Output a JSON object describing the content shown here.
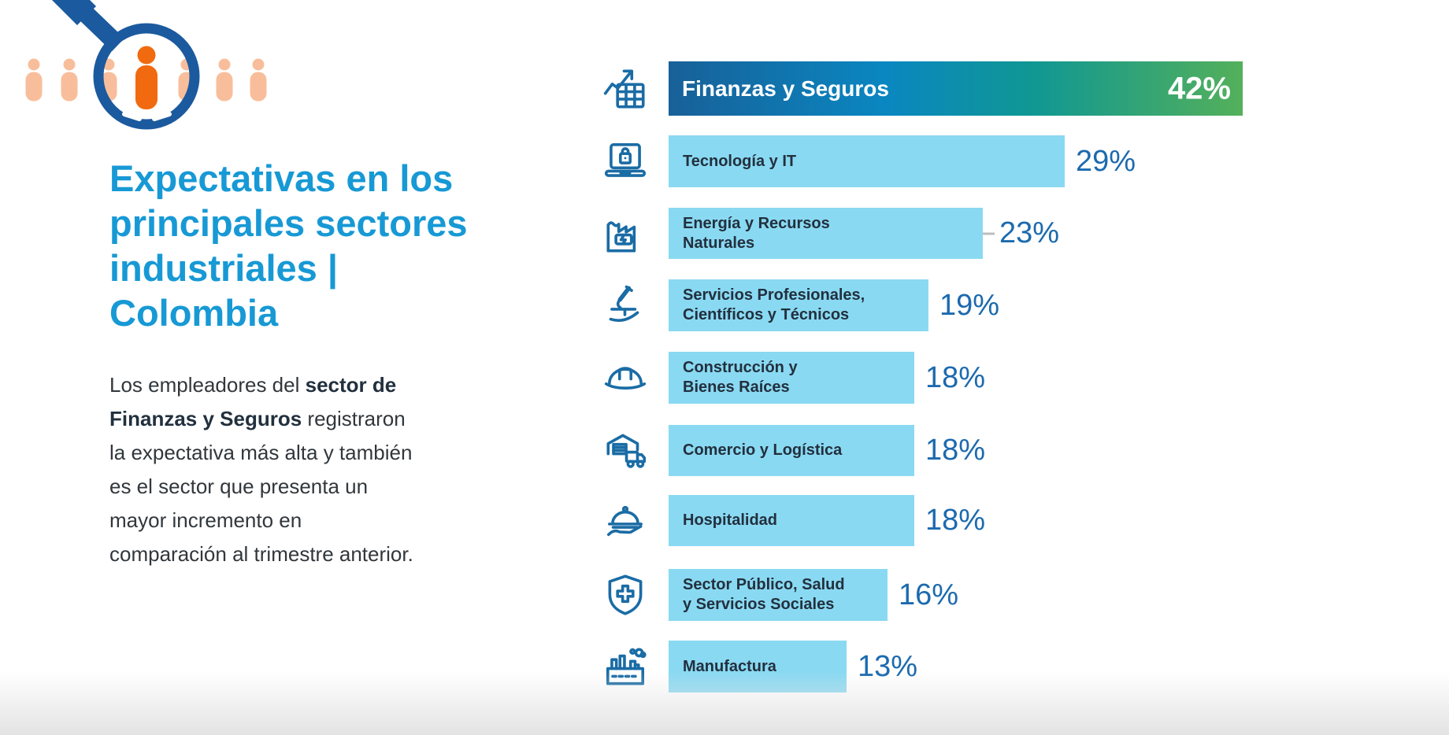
{
  "colors": {
    "background": "#FFFFFF",
    "title": "#1799D5",
    "body_text": "#31373C"
  },
  "header": {
    "title_lines": [
      "Expectativas en los",
      "principales sectores",
      "industriales |",
      "Colombia"
    ]
  },
  "description": {
    "lines": [
      [
        {
          "t": "Los empleadores del ",
          "b": false
        },
        {
          "t": "sector de",
          "b": true
        }
      ],
      [
        {
          "t": "Finanzas y Seguros",
          "b": true
        },
        {
          "t": " registraron",
          "b": false
        }
      ],
      [
        {
          "t": "la expectativa más alta y también",
          "b": false
        }
      ],
      [
        {
          "t": "es el sector que presenta un",
          "b": false
        }
      ],
      [
        {
          "t": "mayor incremento en",
          "b": false
        }
      ],
      [
        {
          "t": "comparación al trimestre anterior.",
          "b": false
        }
      ]
    ]
  },
  "illustration": {
    "name": "magnifier-over-people",
    "people_color": "#F8BE9B",
    "highlight_color": "#F16A10",
    "magnifier_color": "#1B5A9E"
  },
  "chart_data": {
    "type": "bar",
    "orientation": "horizontal",
    "title": "",
    "xlabel": "",
    "ylabel": "",
    "unit": "%",
    "xlim": [
      0,
      45
    ],
    "grid": false,
    "legend": false,
    "highlight_index": 0,
    "categories": [
      "Finanzas y Seguros",
      "Tecnología y IT",
      "Energía y Recursos Naturales",
      "Servicios Profesionales, Científicos y Técnicos",
      "Construcción y Bienes Raíces",
      "Comercio y Logística",
      "Hospitalidad",
      "Sector Público, Salud y Servicios Sociales",
      "Manufactura"
    ],
    "values": [
      42,
      29,
      23,
      19,
      18,
      18,
      18,
      16,
      13
    ],
    "value_labels": [
      "42%",
      "29%",
      "23%",
      "19%",
      "18%",
      "18%",
      "18%",
      "16%",
      "13%"
    ],
    "rows": [
      {
        "label_lines": [
          "Finanzas y Seguros"
        ],
        "value": 42,
        "pct": "42%",
        "icon": "chart-growth",
        "highlight": true,
        "dash": false
      },
      {
        "label_lines": [
          "Tecnología y IT"
        ],
        "value": 29,
        "pct": "29%",
        "icon": "laptop-lock",
        "highlight": false,
        "dash": false
      },
      {
        "label_lines": [
          "Energía y Recursos",
          "Naturales"
        ],
        "value": 23,
        "pct": "23%",
        "icon": "factory-energy",
        "highlight": false,
        "dash": true
      },
      {
        "label_lines": [
          "Servicios Profesionales,",
          "Científicos y Técnicos"
        ],
        "value": 19,
        "pct": "19%",
        "icon": "microscope",
        "highlight": false,
        "dash": false
      },
      {
        "label_lines": [
          "Construcción y",
          "Bienes Raíces"
        ],
        "value": 18,
        "pct": "18%",
        "icon": "hard-hat",
        "highlight": false,
        "dash": false
      },
      {
        "label_lines": [
          "Comercio y Logística"
        ],
        "value": 18,
        "pct": "18%",
        "icon": "warehouse-truck",
        "highlight": false,
        "dash": false
      },
      {
        "label_lines": [
          "Hospitalidad"
        ],
        "value": 18,
        "pct": "18%",
        "icon": "cloche-hand",
        "highlight": false,
        "dash": false
      },
      {
        "label_lines": [
          "Sector Público, Salud",
          "y Servicios Sociales"
        ],
        "value": 16,
        "pct": "16%",
        "icon": "shield-cross",
        "highlight": false,
        "dash": false
      },
      {
        "label_lines": [
          "Manufactura"
        ],
        "value": 13,
        "pct": "13%",
        "icon": "factory-smoke",
        "highlight": false,
        "dash": false
      }
    ],
    "colors": {
      "bar_fill": "#8AD9F2",
      "highlight_gradient": [
        "#186098",
        "#0A87C1",
        "#0F9794",
        "#54B05A"
      ],
      "bar_label": "#22303E",
      "highlight_label": "#FFFFFF",
      "value_label": "#1C6AAE",
      "icon_stroke": "#1A6CA5",
      "leader_dash": "#BDBDBD"
    }
  }
}
